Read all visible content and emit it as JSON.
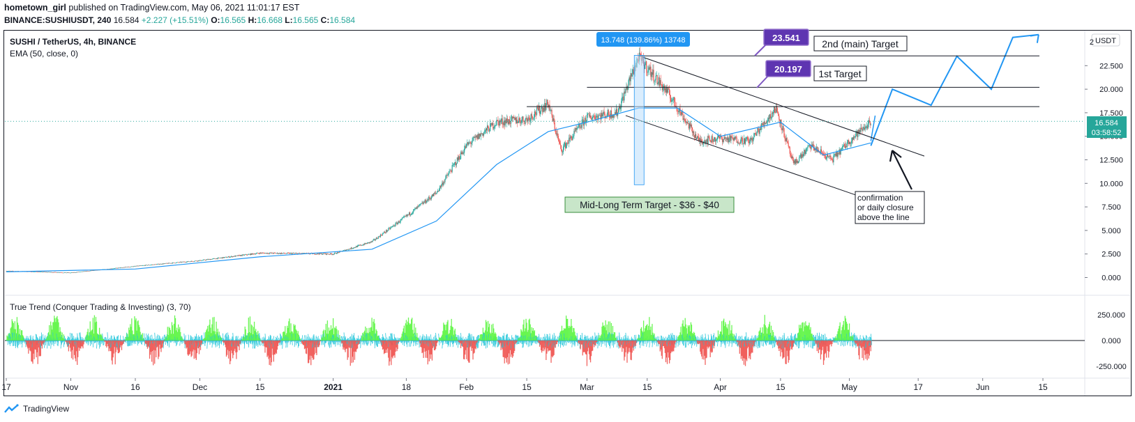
{
  "header": {
    "author": "hometown_girl",
    "published_text": "published on TradingView.com, May 06, 2021 11:01:17 EST",
    "symbol_line": "BINANCE:SUSHIUSDT, 240",
    "last": "16.584",
    "change": "+2.227 (+15.51%)",
    "o_label": "O:",
    "o": "16.565",
    "h_label": "H:",
    "h": "16.668",
    "l_label": "L:",
    "l": "16.565",
    "c_label": "C:",
    "c": "16.584"
  },
  "legend": {
    "title": "SUSHI / TetherUS, 4h, BINANCE",
    "ema": "EMA (50, close, 0)",
    "indicator": "True Trend (Conquer Trading & Investing) (3, 70)"
  },
  "price_scale": {
    "currency": "USDT",
    "top_partial": "2",
    "current_price": "16.584",
    "countdown": "03:58:52"
  },
  "annotations": {
    "range_label": "13.748 (139.86%) 13748",
    "target_main_price": "23.541",
    "target_main_label": "2nd (main) Target",
    "target_1_price": "20.197",
    "target_1_label": "1st Target",
    "mid_long_label": "Mid-Long Term Target - $36 - $40",
    "confirmation": [
      "confirmation",
      "or daily closure",
      "above the line"
    ]
  },
  "footer": {
    "brand": "TradingView"
  },
  "colors": {
    "up": "#26a69a",
    "down": "#ef5350",
    "ema": "#2196f3",
    "projection": "#2196f3",
    "label_purple": "#5e35b1",
    "indicator_up": "#5cf542",
    "indicator_down": "#ef5350",
    "indicator_line": "#26c6da"
  },
  "chart_data": {
    "type": "line",
    "title": "SUSHI / TetherUS, 4h, BINANCE",
    "x_ticks": [
      "17",
      "Nov",
      "16",
      "Dec",
      "15",
      "2021",
      "18",
      "Feb",
      "15",
      "Mar",
      "15",
      "Apr",
      "15",
      "May",
      "17",
      "Jun",
      "15"
    ],
    "y_ticks": [
      "0.000",
      "2.500",
      "5.000",
      "7.500",
      "10.000",
      "12.500",
      "15.000",
      "17.500",
      "20.000",
      "22.500"
    ],
    "ylim": [
      -1,
      26
    ],
    "indicator_y_ticks": [
      "250.000",
      "0.000",
      "-250.000"
    ],
    "indicator_ylim": [
      -330,
      330
    ],
    "series": [
      {
        "name": "SUSHI / TetherUS",
        "x": [
          "2020-10-17",
          "2020-11-01",
          "2020-11-16",
          "2020-12-01",
          "2020-12-15",
          "2021-01-01",
          "2021-01-10",
          "2021-01-18",
          "2021-01-25",
          "2021-02-01",
          "2021-02-08",
          "2021-02-15",
          "2021-02-20",
          "2021-02-23",
          "2021-03-01",
          "2021-03-08",
          "2021-03-13",
          "2021-03-20",
          "2021-03-27",
          "2021-04-01",
          "2021-04-08",
          "2021-04-14",
          "2021-04-18",
          "2021-04-22",
          "2021-04-27",
          "2021-05-01",
          "2021-05-06"
        ],
        "values": [
          0.7,
          0.5,
          1.2,
          1.8,
          2.6,
          2.5,
          3.8,
          6.5,
          9.0,
          14.0,
          16.5,
          16.8,
          18.5,
          13.5,
          17.0,
          17.5,
          23.4,
          19.5,
          14.5,
          14.8,
          14.5,
          18.0,
          12.0,
          14.0,
          12.5,
          14.5,
          16.584
        ]
      },
      {
        "name": "EMA (50, close, 0)",
        "x": [
          "2020-10-17",
          "2020-11-16",
          "2020-12-15",
          "2021-01-10",
          "2021-01-25",
          "2021-02-08",
          "2021-02-20",
          "2021-03-01",
          "2021-03-13",
          "2021-03-22",
          "2021-04-01",
          "2021-04-15",
          "2021-04-25",
          "2021-05-06"
        ],
        "values": [
          0.6,
          0.9,
          2.2,
          3.0,
          6.0,
          12.0,
          15.5,
          16.5,
          18.0,
          18.0,
          15.0,
          16.5,
          13.0,
          14.3
        ]
      },
      {
        "name": "Projection",
        "x": [
          "2021-05-06",
          "2021-05-11",
          "2021-05-20",
          "2021-05-26",
          "2021-06-03",
          "2021-06-08",
          "2021-06-14"
        ],
        "values": [
          14.0,
          20.0,
          18.3,
          23.5,
          20.0,
          25.5,
          25.8
        ]
      }
    ]
  }
}
